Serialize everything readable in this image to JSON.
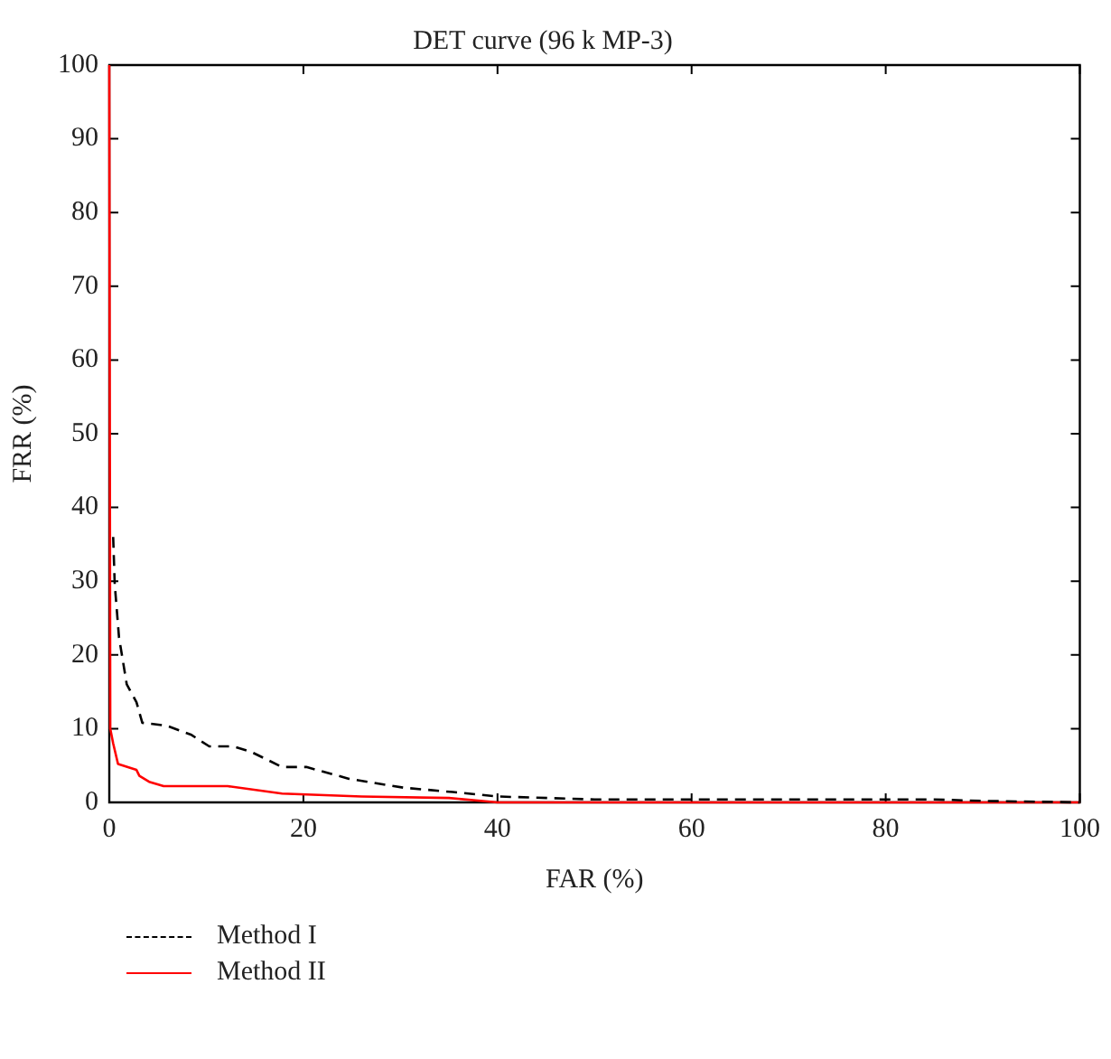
{
  "chart_data": {
    "type": "line",
    "title": "DET curve (96 k MP-3)",
    "xlabel": "FAR (%)",
    "ylabel": "FRR (%)",
    "xlim": [
      0,
      100
    ],
    "xticks": [
      0,
      20,
      40,
      60,
      80,
      100
    ],
    "ylim": [
      0,
      100
    ],
    "yticks": [
      0,
      10,
      20,
      30,
      40,
      50,
      60,
      70,
      80,
      90,
      100
    ],
    "grid": false,
    "legend": "bottom",
    "marker": "none",
    "series": [
      {
        "name": "Method I",
        "color": "#000000",
        "line_style": "dashed",
        "x": [
          0.4,
          0.56,
          1.0,
          1.8,
          2.8,
          3.4,
          5.9,
          8.4,
          10.3,
          12.8,
          14.7,
          17.8,
          20.3,
          24.7,
          30.3,
          35.4,
          40,
          50,
          85,
          90,
          100
        ],
        "values": [
          36,
          29.6,
          22.4,
          16,
          13.6,
          10.8,
          10.4,
          9.2,
          7.6,
          7.6,
          6.8,
          4.8,
          4.8,
          3.2,
          2,
          1.4,
          0.8,
          0.4,
          0.4,
          0.2,
          0
        ]
      },
      {
        "name": "Method II",
        "color": "#ff0000",
        "line_style": "solid",
        "x": [
          0,
          0.1,
          0.4,
          0.9,
          2.8,
          3.1,
          4.1,
          5.6,
          12.2,
          17.8,
          26,
          35,
          40,
          100
        ],
        "values": [
          100,
          10,
          8,
          5.2,
          4.4,
          3.6,
          2.8,
          2.2,
          2.2,
          1.2,
          0.8,
          0.6,
          0,
          0
        ]
      }
    ]
  }
}
